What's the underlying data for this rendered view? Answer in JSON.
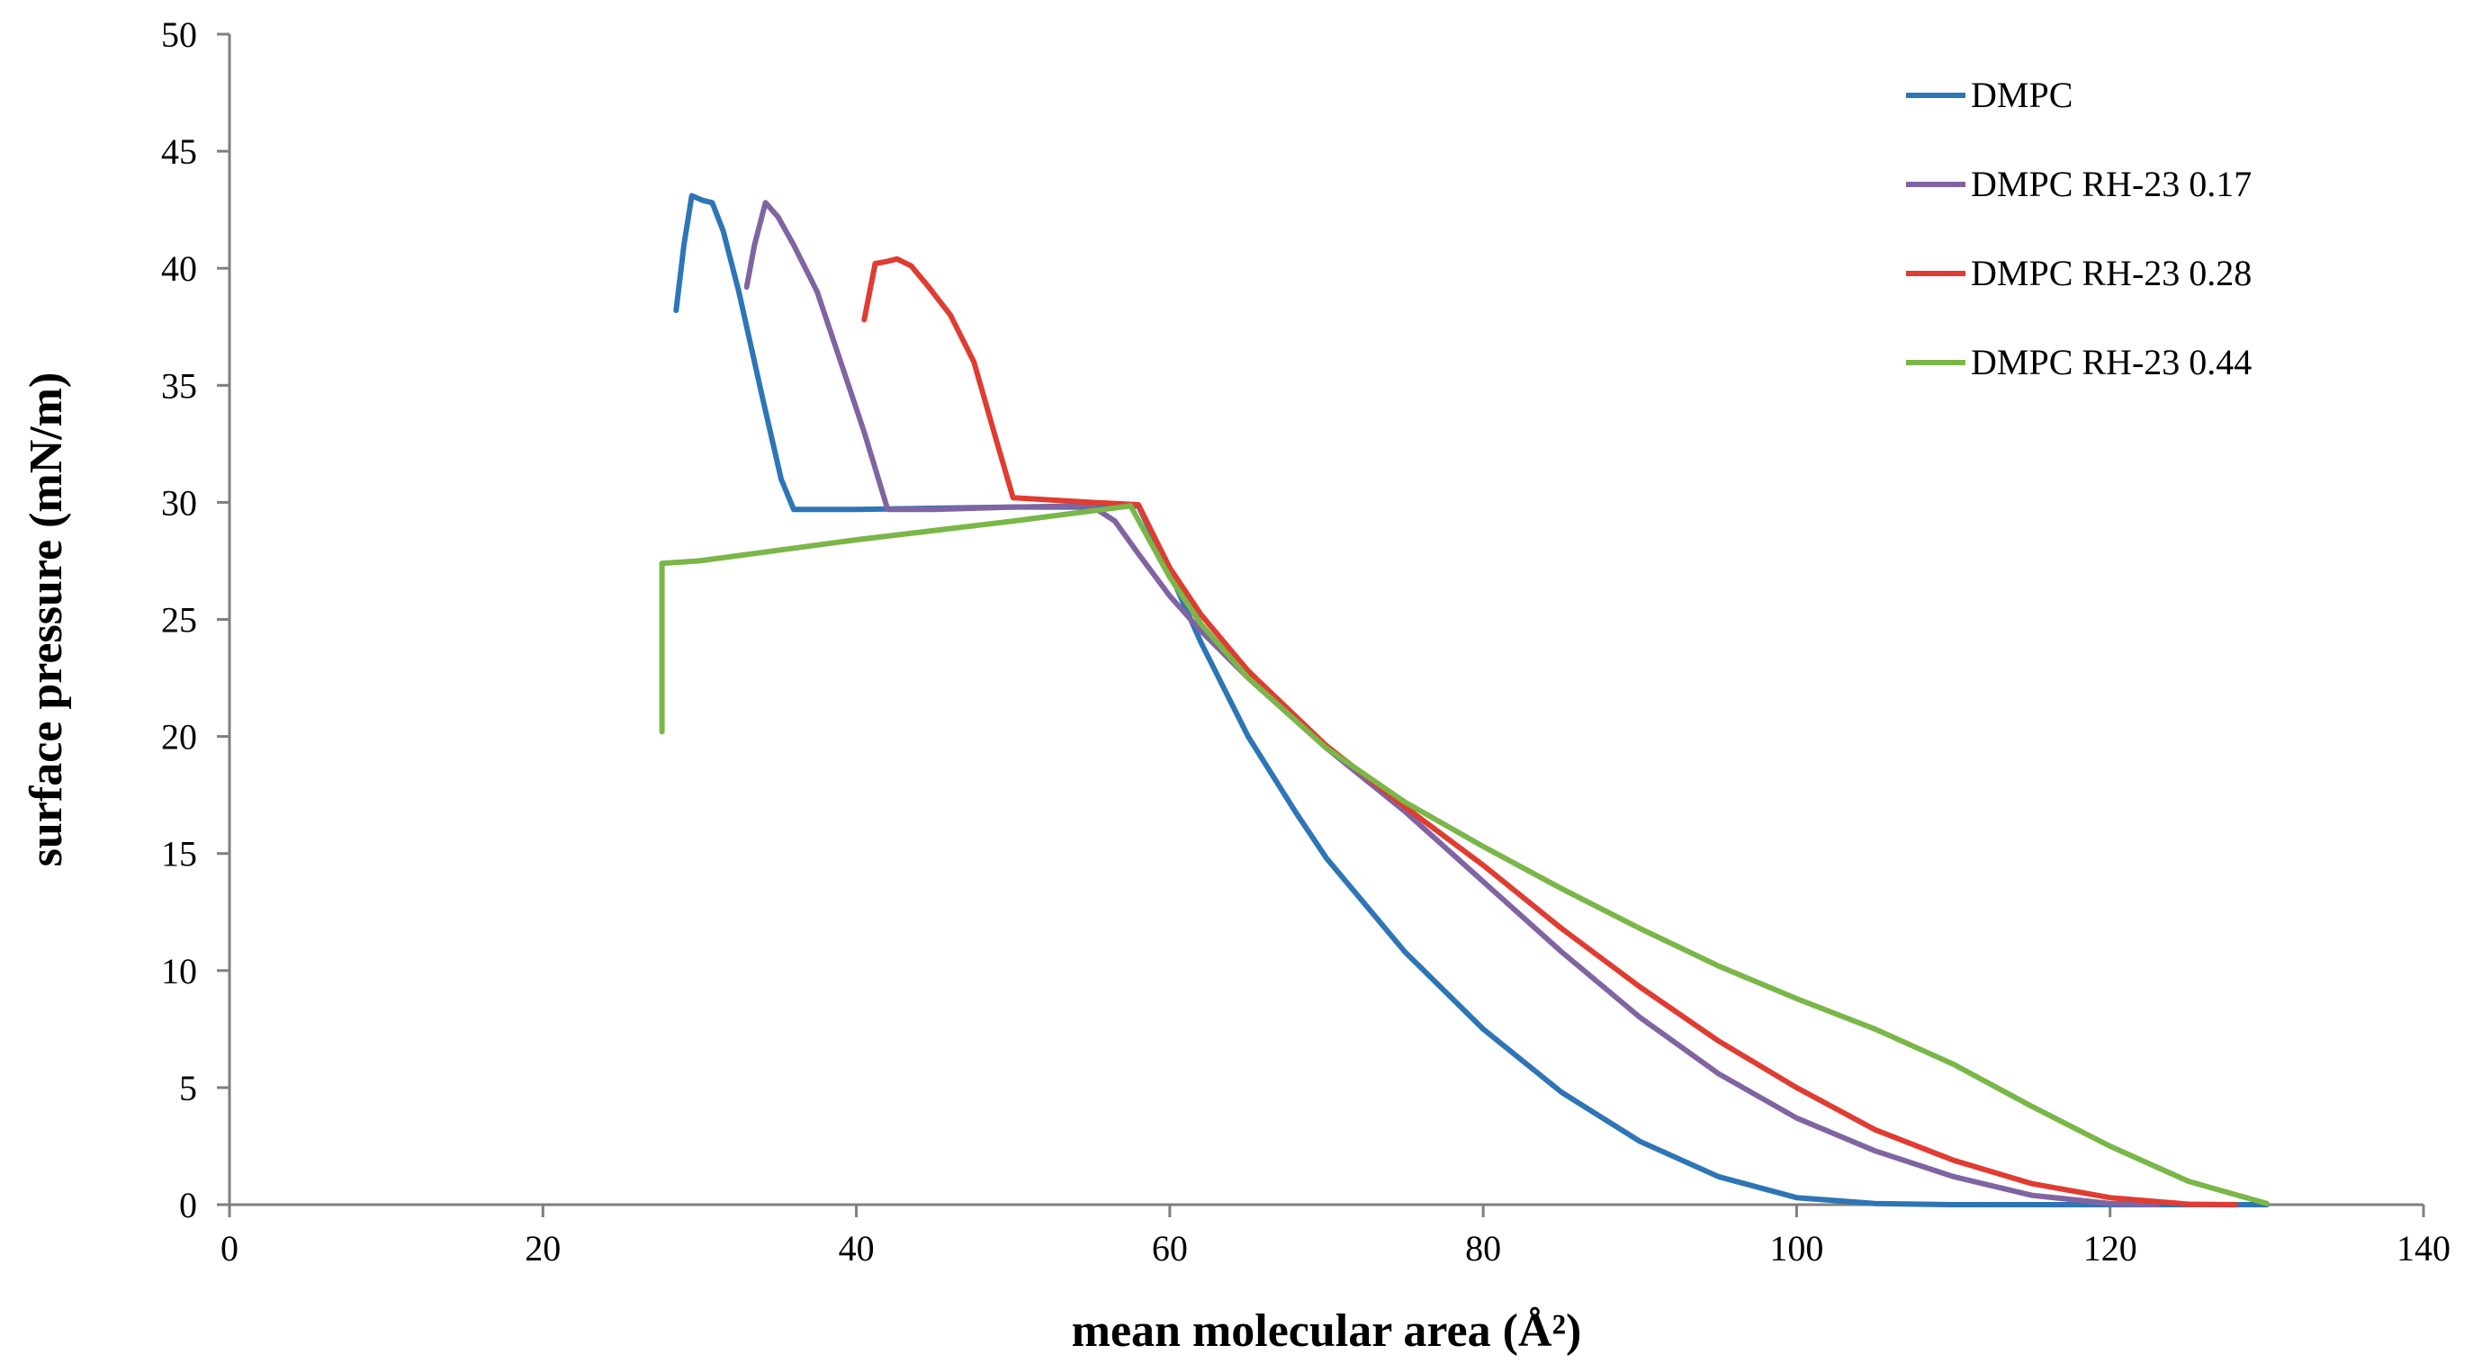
{
  "chart_data": {
    "type": "line",
    "title": "",
    "xlabel": "mean molecular area (Å²)",
    "ylabel": "surface pressure  (mN/m)",
    "xlim": [
      0,
      140
    ],
    "ylim": [
      0,
      50
    ],
    "x_ticks": [
      0,
      20,
      40,
      60,
      80,
      100,
      120,
      140
    ],
    "y_ticks": [
      0,
      5,
      10,
      15,
      20,
      25,
      30,
      35,
      40,
      45,
      50
    ],
    "grid": false,
    "legend_position": "top-right",
    "series": [
      {
        "name": "DMPC",
        "color": "#2E75B6",
        "points": [
          [
            28.5,
            38.2
          ],
          [
            29.0,
            41.0
          ],
          [
            29.5,
            43.1
          ],
          [
            30.2,
            42.9
          ],
          [
            30.8,
            42.8
          ],
          [
            31.5,
            41.6
          ],
          [
            32.5,
            39.0
          ],
          [
            34.0,
            34.5
          ],
          [
            35.2,
            31.0
          ],
          [
            36.0,
            29.7
          ],
          [
            40.0,
            29.7
          ],
          [
            45.0,
            29.75
          ],
          [
            50.0,
            29.8
          ],
          [
            55.0,
            29.8
          ],
          [
            58.0,
            29.85
          ],
          [
            60.0,
            27.0
          ],
          [
            62.0,
            24.0
          ],
          [
            65.0,
            20.0
          ],
          [
            68.0,
            16.8
          ],
          [
            70.0,
            14.8
          ],
          [
            75.0,
            10.8
          ],
          [
            80.0,
            7.5
          ],
          [
            85.0,
            4.8
          ],
          [
            90.0,
            2.7
          ],
          [
            95.0,
            1.2
          ],
          [
            100.0,
            0.3
          ],
          [
            105.0,
            0.05
          ],
          [
            110.0,
            0
          ],
          [
            130.0,
            0
          ]
        ]
      },
      {
        "name": "DMPC RH-23 0.17",
        "color": "#8064A2",
        "points": [
          [
            33.0,
            39.2
          ],
          [
            33.5,
            41.0
          ],
          [
            34.2,
            42.8
          ],
          [
            35.0,
            42.2
          ],
          [
            36.0,
            41.0
          ],
          [
            37.5,
            39.0
          ],
          [
            39.0,
            36.0
          ],
          [
            40.5,
            33.0
          ],
          [
            42.0,
            29.7
          ],
          [
            45.0,
            29.7
          ],
          [
            50.0,
            29.8
          ],
          [
            55.0,
            29.85
          ],
          [
            56.5,
            29.2
          ],
          [
            58.0,
            27.8
          ],
          [
            60.0,
            26.0
          ],
          [
            62.0,
            24.5
          ],
          [
            65.0,
            22.5
          ],
          [
            70.0,
            19.5
          ],
          [
            75.0,
            16.8
          ],
          [
            80.0,
            13.8
          ],
          [
            85.0,
            10.8
          ],
          [
            90.0,
            8.0
          ],
          [
            95.0,
            5.6
          ],
          [
            100.0,
            3.7
          ],
          [
            105.0,
            2.3
          ],
          [
            110.0,
            1.2
          ],
          [
            115.0,
            0.4
          ],
          [
            120.0,
            0.05
          ],
          [
            123.0,
            0
          ]
        ]
      },
      {
        "name": "DMPC RH-23 0.28",
        "color": "#E03C31",
        "points": [
          [
            40.5,
            37.8
          ],
          [
            41.2,
            40.2
          ],
          [
            42.0,
            40.3
          ],
          [
            42.6,
            40.4
          ],
          [
            43.5,
            40.1
          ],
          [
            44.5,
            39.3
          ],
          [
            46.0,
            38.0
          ],
          [
            47.5,
            36.0
          ],
          [
            49.0,
            32.5
          ],
          [
            50.0,
            30.2
          ],
          [
            55.0,
            30.0
          ],
          [
            58.0,
            29.9
          ],
          [
            60.0,
            27.2
          ],
          [
            62.0,
            25.2
          ],
          [
            65.0,
            22.8
          ],
          [
            70.0,
            19.6
          ],
          [
            75.0,
            17.0
          ],
          [
            80.0,
            14.5
          ],
          [
            85.0,
            11.8
          ],
          [
            90.0,
            9.3
          ],
          [
            95.0,
            7.0
          ],
          [
            100.0,
            5.0
          ],
          [
            105.0,
            3.2
          ],
          [
            110.0,
            1.9
          ],
          [
            115.0,
            0.9
          ],
          [
            120.0,
            0.3
          ],
          [
            125.0,
            0.02
          ],
          [
            128.0,
            0
          ]
        ]
      },
      {
        "name": "DMPC RH-23 0.44",
        "color": "#7AB648",
        "points": [
          [
            27.6,
            20.2
          ],
          [
            27.6,
            27.4
          ],
          [
            30.0,
            27.5
          ],
          [
            40.0,
            28.4
          ],
          [
            50.0,
            29.2
          ],
          [
            57.5,
            29.85
          ],
          [
            60.0,
            26.8
          ],
          [
            62.0,
            24.8
          ],
          [
            65.0,
            22.5
          ],
          [
            70.0,
            19.5
          ],
          [
            75.0,
            17.2
          ],
          [
            80.0,
            15.3
          ],
          [
            85.0,
            13.5
          ],
          [
            90.0,
            11.8
          ],
          [
            95.0,
            10.2
          ],
          [
            100.0,
            8.8
          ],
          [
            105.0,
            7.5
          ],
          [
            110.0,
            6.0
          ],
          [
            115.0,
            4.2
          ],
          [
            120.0,
            2.5
          ],
          [
            125.0,
            1.0
          ],
          [
            130.0,
            0.05
          ]
        ]
      }
    ]
  }
}
